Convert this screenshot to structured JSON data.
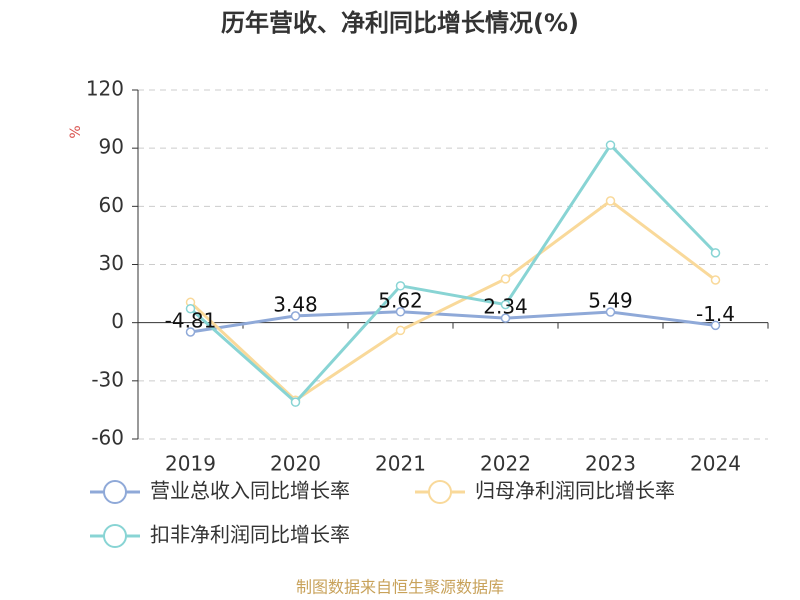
{
  "chart_data": {
    "type": "line",
    "title": "历年营收、净利同比增长情况(%)",
    "y_label": "%",
    "source": "制图数据来自恒生聚源数据库",
    "categories": [
      "2019",
      "2020",
      "2021",
      "2022",
      "2023",
      "2024"
    ],
    "series": [
      {
        "name": "营业总收入同比增长率",
        "color": "#8fa9d8",
        "values": [
          -4.81,
          3.48,
          5.62,
          2.34,
          5.49,
          -1.4
        ],
        "data_labels": true
      },
      {
        "name": "归母净利润同比增长率",
        "color": "#f9d99a",
        "values": [
          10.5,
          -40,
          -4,
          22.6,
          62.8,
          22
        ]
      },
      {
        "name": "扣非净利润同比增长率",
        "color": "#88d4d4",
        "values": [
          7.2,
          -41,
          19,
          9.3,
          91.6,
          36
        ]
      }
    ],
    "ylim": [
      -60,
      120
    ],
    "yticks": [
      -60,
      -30,
      0,
      30,
      60,
      90,
      120
    ],
    "grid": true
  }
}
